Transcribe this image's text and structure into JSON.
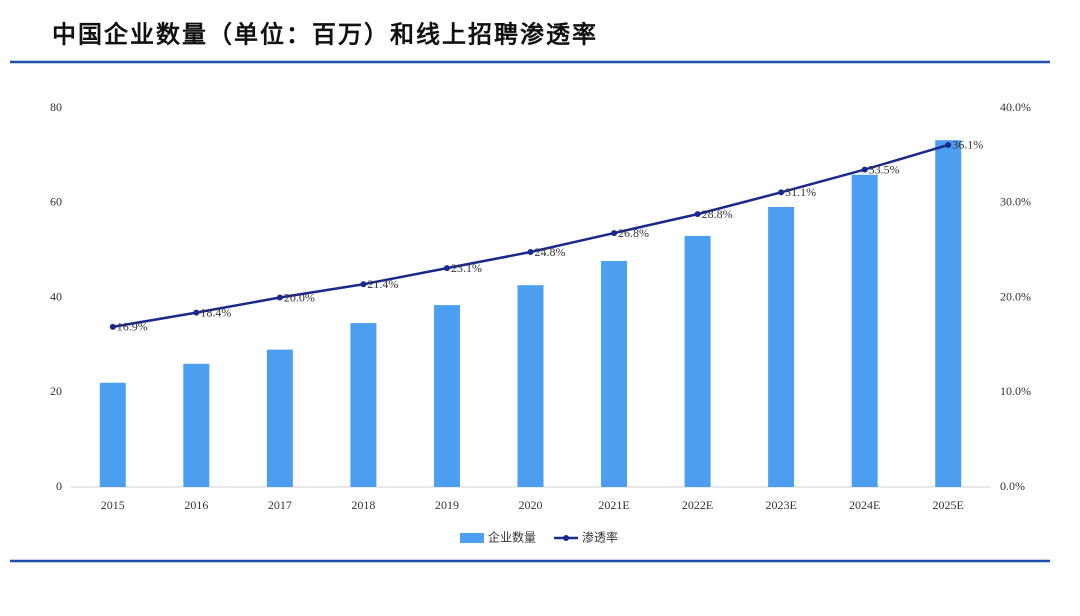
{
  "chart_data": {
    "type": "bar-line",
    "title": "中国企业数量（单位：百万）和线上招聘渗透率",
    "categories": [
      "2015",
      "2016",
      "2017",
      "2018",
      "2019",
      "2020",
      "2021E",
      "2022E",
      "2023E",
      "2024E",
      "2025E"
    ],
    "series": [
      {
        "name": "企业数量",
        "type": "bar",
        "color": "#4b9ef0",
        "values": [
          22,
          26,
          29,
          34.6,
          38.4,
          42.6,
          47.7,
          53,
          59.1,
          65.9,
          73.2
        ]
      },
      {
        "name": "渗透率",
        "type": "line",
        "axis": "y2",
        "color": "#1a2a8c",
        "values": [
          16.9,
          18.4,
          20.0,
          21.4,
          23.1,
          24.8,
          26.8,
          28.8,
          31.1,
          33.5,
          36.1
        ],
        "value_labels": [
          "16.9%",
          "18.4%",
          "20.0%",
          "21.4%",
          "23.1%",
          "24.8%",
          "26.8%",
          "28.8%",
          "31.1%",
          "33.5%",
          "36.1%"
        ]
      }
    ],
    "ylim": [
      0,
      80
    ],
    "yticks": [
      0,
      20,
      40,
      60,
      80
    ],
    "y2lim": [
      0,
      40
    ],
    "y2ticks": [
      {
        "value": 0,
        "label": "0.0%"
      },
      {
        "value": 10,
        "label": "10.0%"
      },
      {
        "value": 20,
        "label": "20.0%"
      },
      {
        "value": 30,
        "label": "30.0%"
      },
      {
        "value": 40,
        "label": "40.0%"
      }
    ],
    "legend": "bottom"
  }
}
